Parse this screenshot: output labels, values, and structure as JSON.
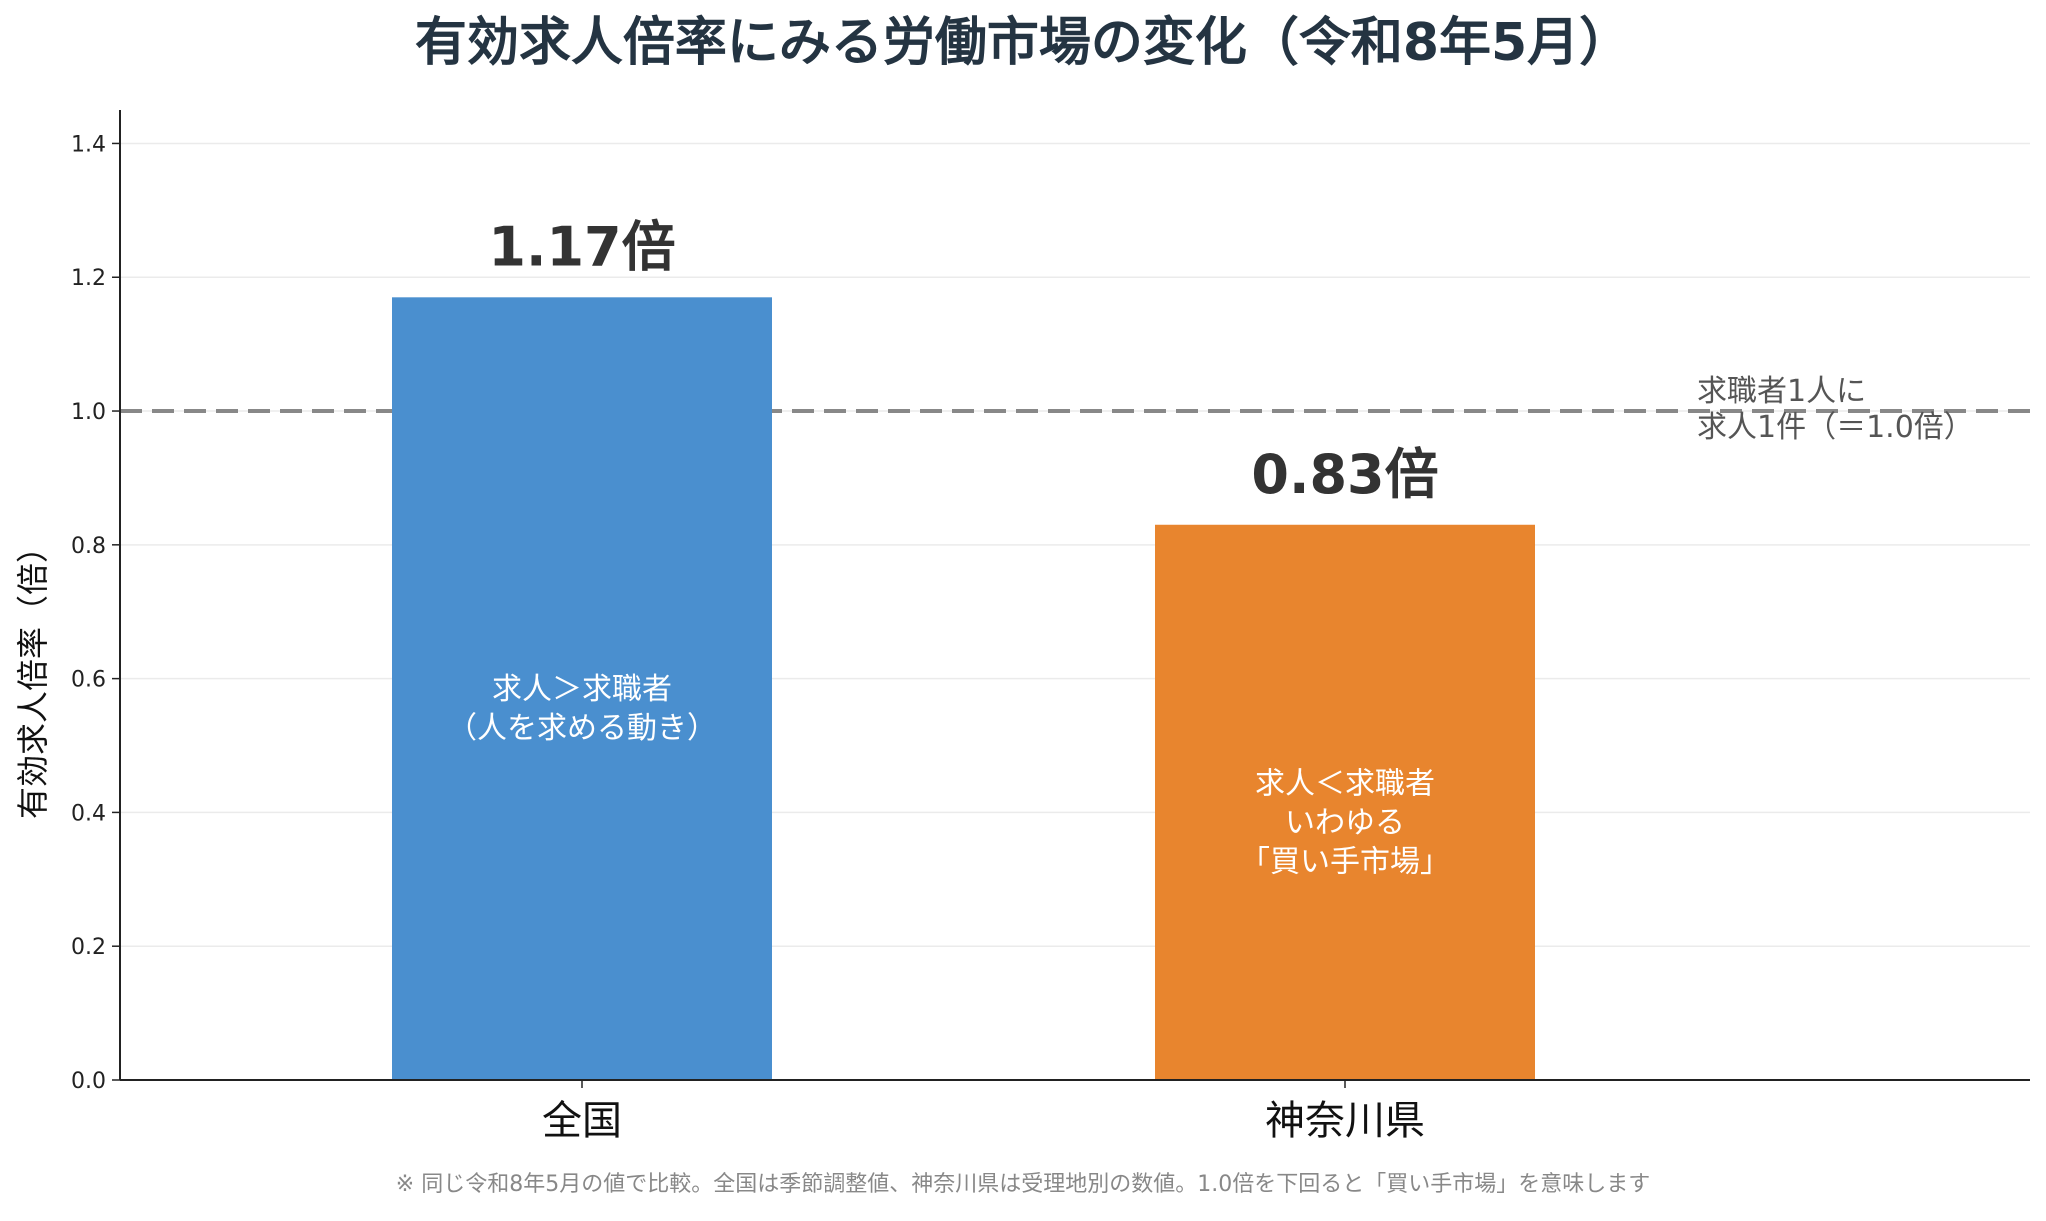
{
  "chart_data": {
    "type": "bar",
    "title": "有効求人倍率にみる労働市場の変化（令和8年5月）",
    "ylabel": "有効求人倍率（倍）",
    "xlabel": "",
    "ylim": [
      0,
      1.45
    ],
    "yticks": [
      "0.0",
      "0.2",
      "0.4",
      "0.6",
      "0.8",
      "1.0",
      "1.2",
      "1.4"
    ],
    "ytick_values": [
      0,
      0.2,
      0.4,
      0.6,
      0.8,
      1.0,
      1.2,
      1.4
    ],
    "grid": true,
    "categories": [
      "全国",
      "神奈川県"
    ],
    "values": [
      1.17,
      0.83
    ],
    "value_labels": [
      "1.17倍",
      "0.83倍"
    ],
    "bar_colors": [
      "#4a8fcf",
      "#e8852e"
    ],
    "bar_annotations": [
      [
        "求人＞求職者",
        "（人を求める動き）"
      ],
      [
        "求人＜求職者",
        "いわゆる",
        "「買い手市場」"
      ]
    ],
    "reference_line": {
      "value": 1.0,
      "style": "dashed",
      "color": "#888888",
      "label_lines": [
        "求職者1人に",
        "求人1件（＝1.0倍）"
      ]
    },
    "footnote": "※ 同じ令和8年5月の値で比較。全国は季節調整値、神奈川県は受理地別の数値。1.0倍を下回ると「買い手市場」を意味します"
  }
}
